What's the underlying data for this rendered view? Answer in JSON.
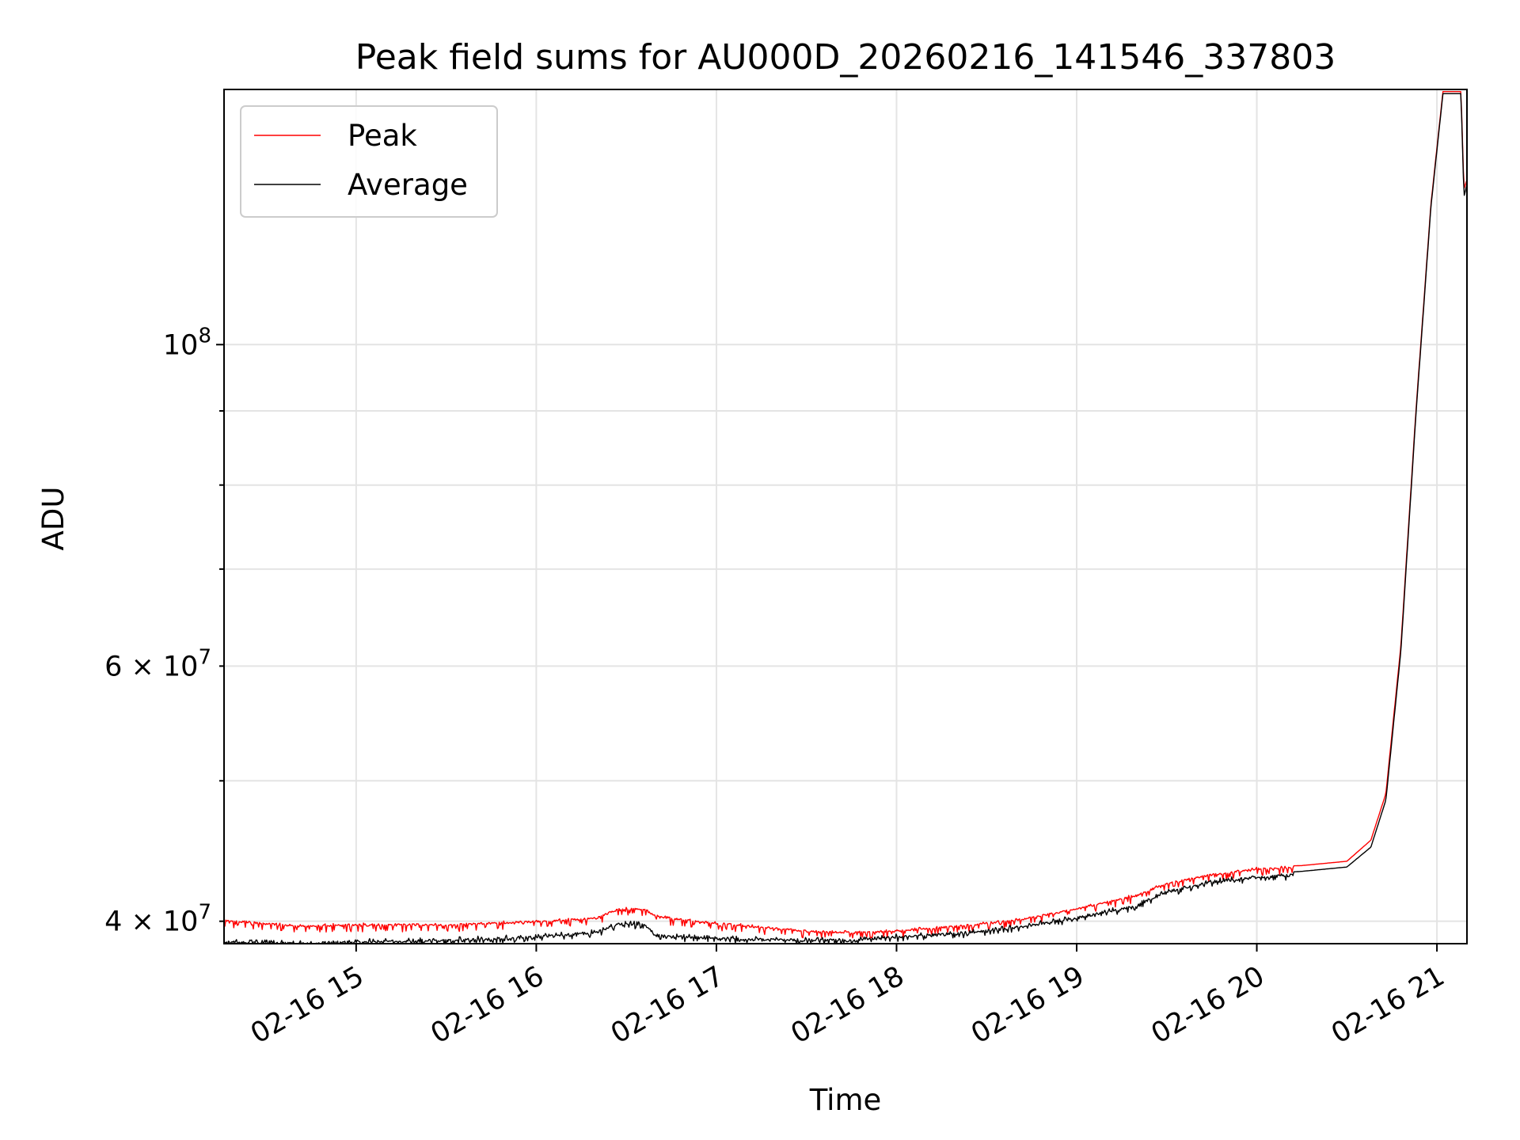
{
  "chart_data": {
    "type": "line",
    "title": "Peak field sums for AU000D_20260216_141546_337803",
    "xlabel": "Time",
    "ylabel": "ADU",
    "x_axis": {
      "type": "time",
      "range": [
        "2026-02-16 14:16",
        "2026-02-16 21:10"
      ],
      "ticks": [
        "2026-02-16 15:00",
        "2026-02-16 16:00",
        "2026-02-16 17:00",
        "2026-02-16 18:00",
        "2026-02-16 19:00",
        "2026-02-16 20:00",
        "2026-02-16 21:00"
      ],
      "tick_labels": [
        "02-16 15",
        "02-16 16",
        "02-16 17",
        "02-16 18",
        "02-16 19",
        "02-16 20",
        "02-16 21"
      ]
    },
    "y_axis": {
      "scale": "log",
      "range": [
        38600000,
        150000000
      ],
      "major_ticks": [
        100000000
      ],
      "major_tick_labels": [
        "10^8"
      ],
      "minor_ticks": [
        40000000,
        50000000,
        60000000,
        70000000,
        80000000,
        90000000
      ],
      "minor_tick_labels": [
        "4 × 10^7",
        "",
        "6 × 10^7",
        "",
        "",
        ""
      ]
    },
    "grid": true,
    "legend_placement": "upper-left",
    "series": [
      {
        "name": "Peak",
        "color": "#ff0000",
        "x": [
          "2026-02-16 14:16",
          "2026-02-16 14:40",
          "2026-02-16 15:00",
          "2026-02-16 15:30",
          "2026-02-16 16:00",
          "2026-02-16 16:20",
          "2026-02-16 16:27",
          "2026-02-16 16:36",
          "2026-02-16 16:40",
          "2026-02-16 17:00",
          "2026-02-16 17:30",
          "2026-02-16 17:45",
          "2026-02-16 18:00",
          "2026-02-16 18:20",
          "2026-02-16 18:40",
          "2026-02-16 19:00",
          "2026-02-16 19:20",
          "2026-02-16 19:30",
          "2026-02-16 19:45",
          "2026-02-16 20:00",
          "2026-02-16 20:15",
          "2026-02-16 20:30",
          "2026-02-16 20:38",
          "2026-02-16 20:43",
          "2026-02-16 20:48",
          "2026-02-16 20:53",
          "2026-02-16 20:58",
          "2026-02-16 21:02",
          "2026-02-16 21:05",
          "2026-02-16 21:08",
          "2026-02-16 21:09",
          "2026-02-16 21:10"
        ],
        "y": [
          40200000,
          39800000,
          39900000,
          39900000,
          40100000,
          40300000,
          40900000,
          40900000,
          40400000,
          40000000,
          39500000,
          39400000,
          39500000,
          39800000,
          40200000,
          40900000,
          41800000,
          42600000,
          43200000,
          43600000,
          43700000,
          44000000,
          45500000,
          49000000,
          62000000,
          90000000,
          125000000,
          149500000,
          149500000,
          149500000,
          128000000,
          130000000
        ]
      },
      {
        "name": "Average",
        "color": "#000000",
        "x": [
          "2026-02-16 14:16",
          "2026-02-16 14:40",
          "2026-02-16 15:00",
          "2026-02-16 15:30",
          "2026-02-16 16:00",
          "2026-02-16 16:20",
          "2026-02-16 16:27",
          "2026-02-16 16:36",
          "2026-02-16 16:40",
          "2026-02-16 17:00",
          "2026-02-16 17:30",
          "2026-02-16 17:45",
          "2026-02-16 18:00",
          "2026-02-16 18:20",
          "2026-02-16 18:40",
          "2026-02-16 19:00",
          "2026-02-16 19:20",
          "2026-02-16 19:30",
          "2026-02-16 19:45",
          "2026-02-16 20:00",
          "2026-02-16 20:15",
          "2026-02-16 20:30",
          "2026-02-16 20:38",
          "2026-02-16 20:43",
          "2026-02-16 20:48",
          "2026-02-16 20:53",
          "2026-02-16 20:58",
          "2026-02-16 21:02",
          "2026-02-16 21:05",
          "2026-02-16 21:08",
          "2026-02-16 21:09",
          "2026-02-16 21:10"
        ],
        "y": [
          38900000,
          38800000,
          38900000,
          39000000,
          39200000,
          39500000,
          40000000,
          40000000,
          39300000,
          39100000,
          39000000,
          39000000,
          39200000,
          39400000,
          39800000,
          40400000,
          41200000,
          42100000,
          42800000,
          43100000,
          43300000,
          43600000,
          45000000,
          48500000,
          61500000,
          89500000,
          124500000,
          149000000,
          149000000,
          149000000,
          126500000,
          129000000
        ]
      }
    ]
  }
}
